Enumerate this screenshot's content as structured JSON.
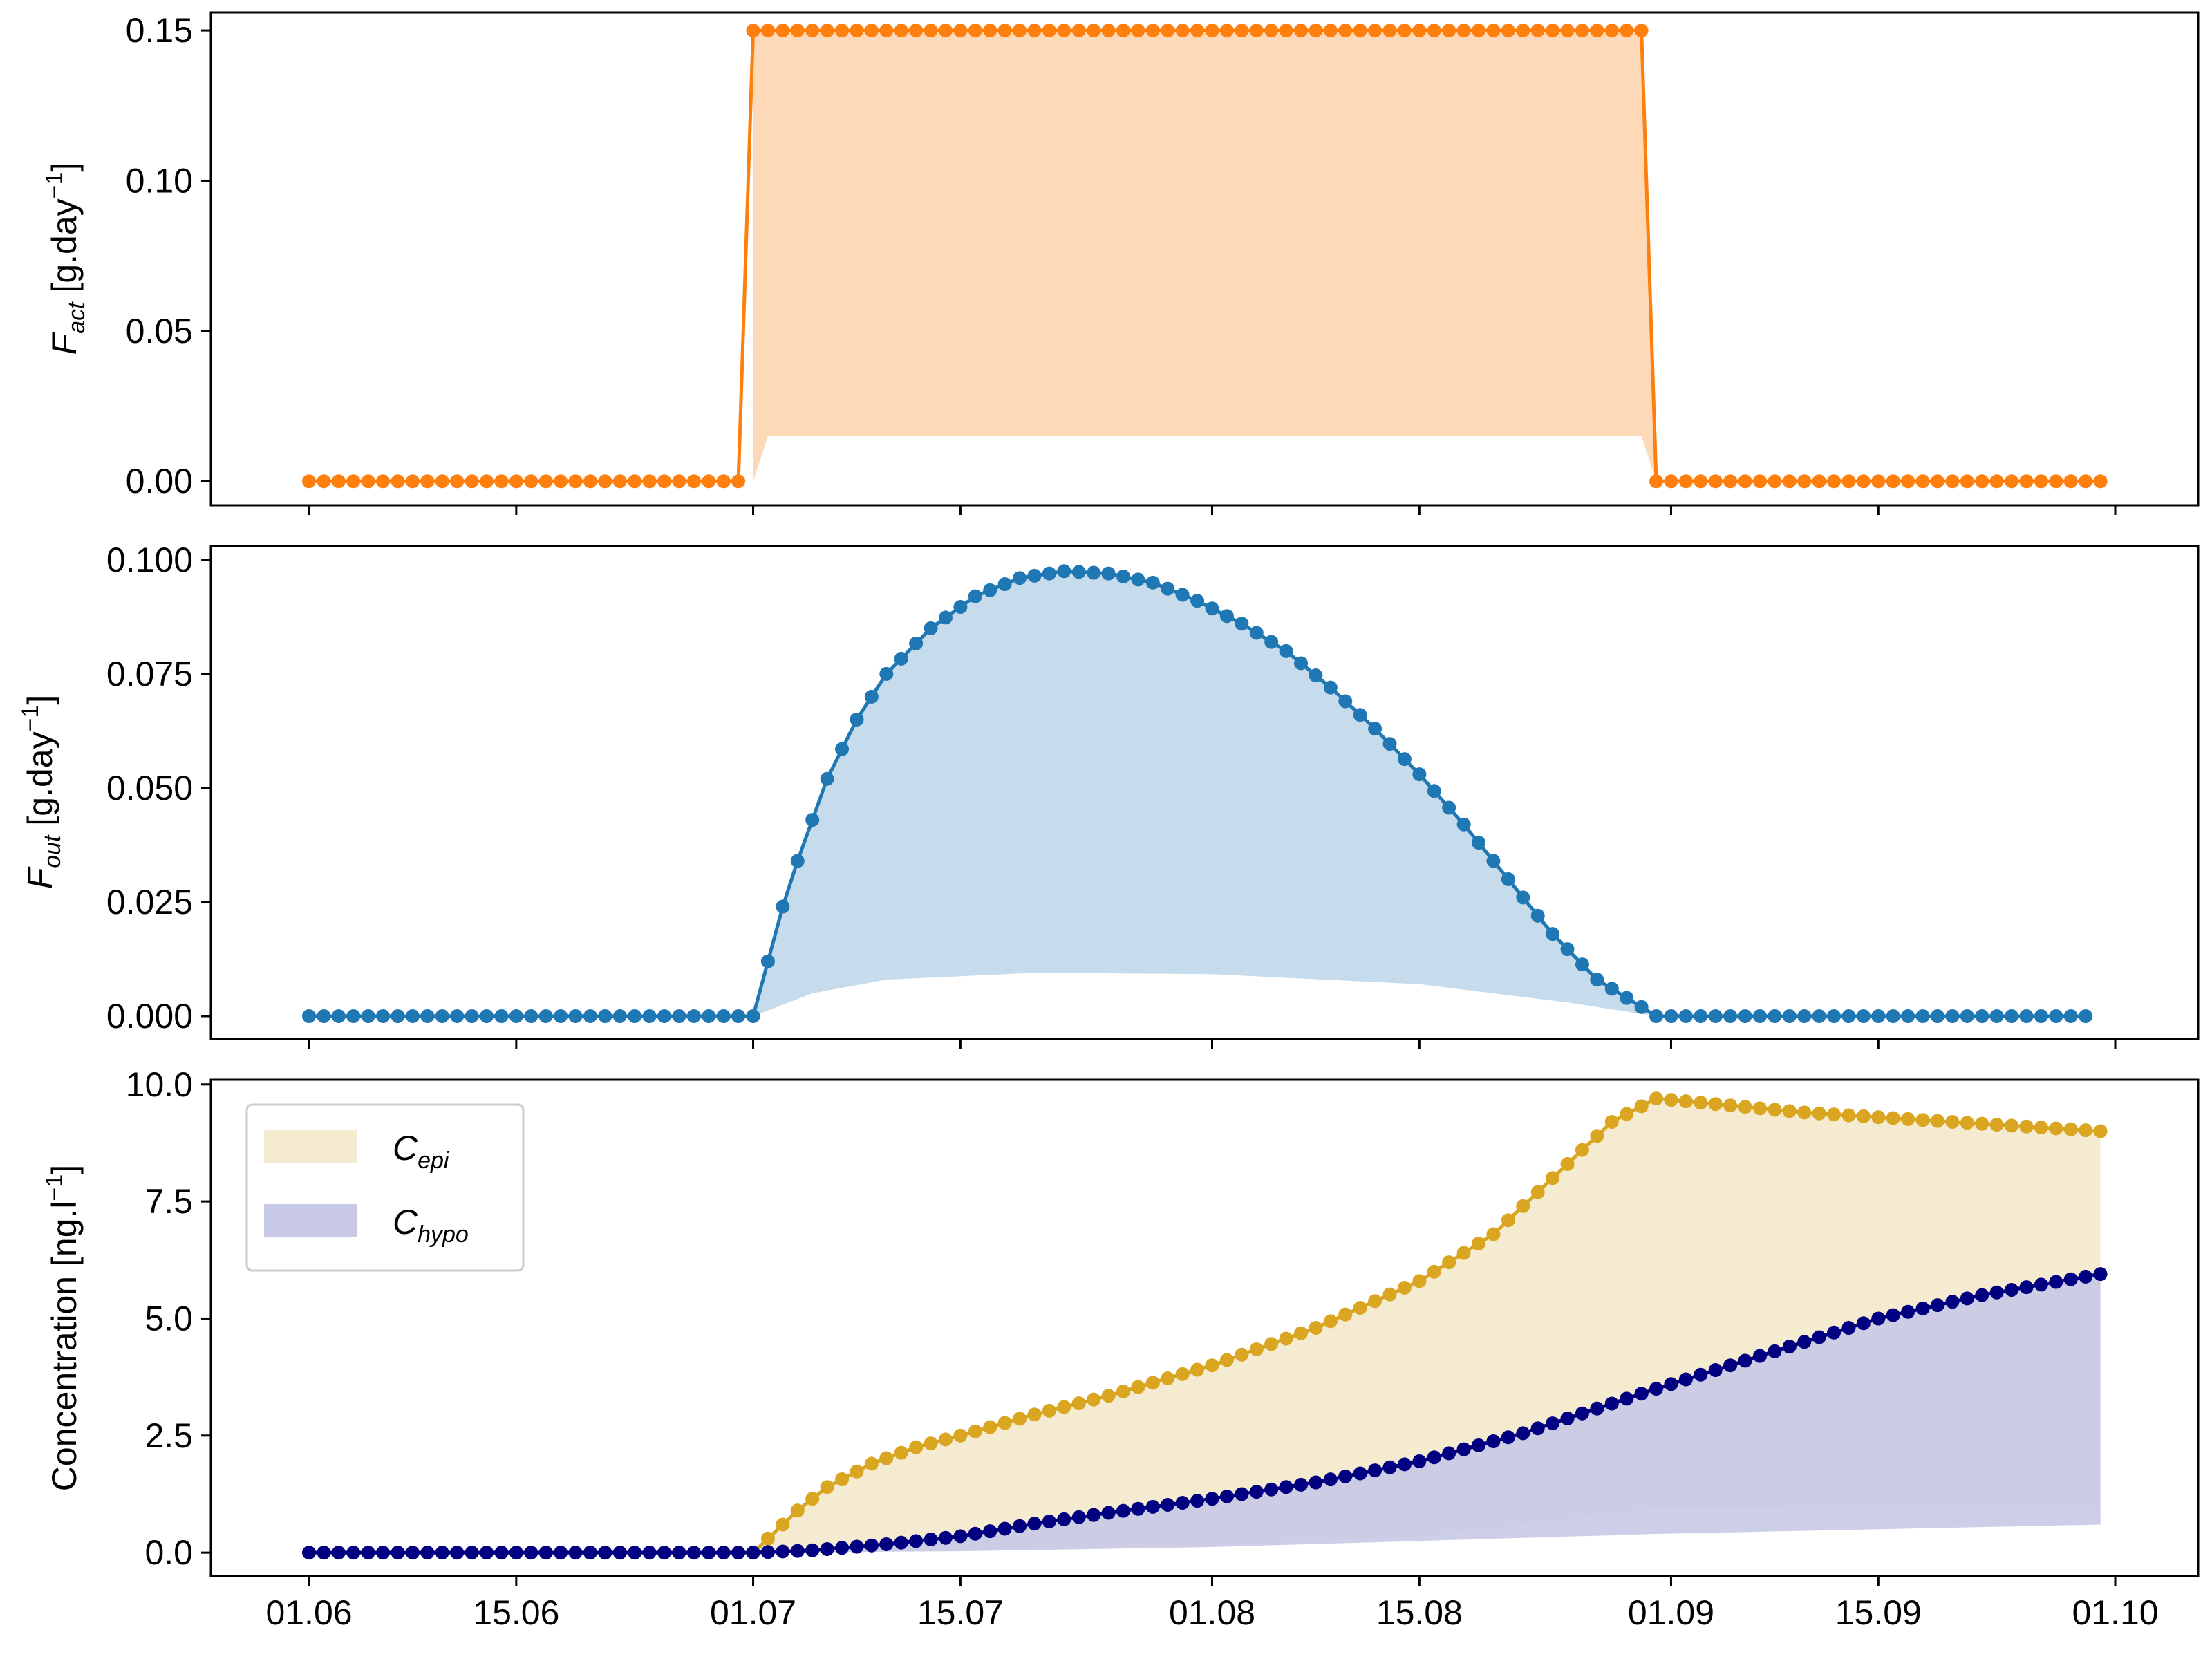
{
  "chart_data": [
    {
      "type": "line",
      "ylabel": "F_act [g.day⁻¹]",
      "ylabel_symbol": "F",
      "ylabel_sub": "act",
      "ylabel_unit": " [g.day",
      "ylabel_exp": "−1",
      "ylabel_close": "]",
      "ylim": [
        -0.008,
        0.156
      ],
      "yticks": [
        0.0,
        0.05,
        0.1,
        0.15
      ],
      "ytick_labels": [
        "0.00",
        "0.05",
        "0.10",
        "0.15"
      ],
      "x_range": [
        "01.06",
        "01.10"
      ],
      "series": [
        {
          "color": "#ff7f0e",
          "fill_color": "#fdd9b8",
          "points": [
            [
              "01.06",
              0.0
            ],
            [
              "30.06",
              0.0
            ],
            [
              "01.07",
              0.15
            ],
            [
              "30.08",
              0.15
            ],
            [
              "31.08",
              0.0
            ],
            [
              "30.09",
              0.0
            ]
          ],
          "band_lower": [
            [
              "01.07",
              0.0
            ],
            [
              "02.07",
              0.015
            ],
            [
              "30.08",
              0.015
            ],
            [
              "31.08",
              0.0
            ]
          ]
        }
      ]
    },
    {
      "type": "line",
      "ylabel": "F_out [g.day⁻¹]",
      "ylabel_symbol": "F",
      "ylabel_sub": "out",
      "ylabel_unit": " [g.day",
      "ylabel_exp": "−1",
      "ylabel_close": "]",
      "ylim": [
        -0.005,
        0.103
      ],
      "yticks": [
        0.0,
        0.025,
        0.05,
        0.075,
        0.1
      ],
      "ytick_labels": [
        "0.000",
        "0.025",
        "0.050",
        "0.075",
        "0.100"
      ],
      "x_range": [
        "01.06",
        "01.10"
      ],
      "series": [
        {
          "color": "#1f77b4",
          "fill_color": "#c6dcec",
          "points": [
            [
              "01.06",
              0.0
            ],
            [
              "30.06",
              0.0
            ],
            [
              "01.07",
              0.0
            ],
            [
              "02.07",
              0.012
            ],
            [
              "03.07",
              0.024
            ],
            [
              "04.07",
              0.034
            ],
            [
              "05.07",
              0.043
            ],
            [
              "06.07",
              0.052
            ],
            [
              "08.07",
              0.065
            ],
            [
              "10.07",
              0.075
            ],
            [
              "13.07",
              0.085
            ],
            [
              "16.07",
              0.092
            ],
            [
              "19.07",
              0.096
            ],
            [
              "22.07",
              0.0975
            ],
            [
              "25.07",
              0.097
            ],
            [
              "28.07",
              0.095
            ],
            [
              "31.07",
              0.091
            ],
            [
              "03.08",
              0.086
            ],
            [
              "06.08",
              0.08
            ],
            [
              "09.08",
              0.072
            ],
            [
              "12.08",
              0.063
            ],
            [
              "15.08",
              0.053
            ],
            [
              "18.08",
              0.042
            ],
            [
              "21.08",
              0.03
            ],
            [
              "24.08",
              0.018
            ],
            [
              "27.08",
              0.008
            ],
            [
              "30.08",
              0.002
            ],
            [
              "31.08",
              0.0
            ],
            [
              "29.09",
              0.0
            ]
          ],
          "band_lower": [
            [
              "01.07",
              0.0
            ],
            [
              "05.07",
              0.005
            ],
            [
              "10.07",
              0.008
            ],
            [
              "20.07",
              0.0095
            ],
            [
              "01.08",
              0.0092
            ],
            [
              "15.08",
              0.007
            ],
            [
              "25.08",
              0.003
            ],
            [
              "31.08",
              0.0
            ]
          ]
        }
      ]
    },
    {
      "type": "line",
      "ylabel": "Concentration [ng.l⁻¹]",
      "ylabel_main": "Concentration [ng.l",
      "ylabel_exp": "−1",
      "ylabel_close": "]",
      "ylim": [
        -0.5,
        10.1
      ],
      "yticks": [
        0.0,
        2.5,
        5.0,
        7.5,
        10.0
      ],
      "ytick_labels": [
        "0.0",
        "2.5",
        "5.0",
        "7.5",
        "10.0"
      ],
      "x_range": [
        "01.06",
        "01.10"
      ],
      "xtick_labels": [
        "01.06",
        "15.06",
        "01.07",
        "15.07",
        "01.08",
        "15.08",
        "01.09",
        "15.09",
        "01.10"
      ],
      "legend": {
        "position": "upper-left",
        "entries": [
          {
            "label": "C",
            "sub": "epi",
            "color": "#f5ebd1"
          },
          {
            "label": "C",
            "sub": "hypo",
            "color": "#c8c9e6"
          }
        ]
      },
      "series": [
        {
          "name": "C_epi",
          "color": "#daa520",
          "fill_color": "#f5ebd1",
          "start_day": "01.07",
          "points": [
            [
              "01.07",
              0.0
            ],
            [
              "02.07",
              0.3
            ],
            [
              "04.07",
              0.9
            ],
            [
              "06.07",
              1.4
            ],
            [
              "09.07",
              1.9
            ],
            [
              "12.07",
              2.25
            ],
            [
              "15.07",
              2.5
            ],
            [
              "20.07",
              2.95
            ],
            [
              "25.07",
              3.35
            ],
            [
              "01.08",
              4.0
            ],
            [
              "08.08",
              4.8
            ],
            [
              "15.08",
              5.8
            ],
            [
              "20.08",
              6.8
            ],
            [
              "24.08",
              8.0
            ],
            [
              "28.08",
              9.2
            ],
            [
              "31.08",
              9.7
            ],
            [
              "05.09",
              9.55
            ],
            [
              "10.09",
              9.4
            ],
            [
              "15.09",
              9.3
            ],
            [
              "20.09",
              9.2
            ],
            [
              "25.09",
              9.1
            ],
            [
              "30.09",
              9.0
            ]
          ],
          "band_lower": [
            [
              "01.07",
              0.0
            ],
            [
              "15.07",
              0.05
            ],
            [
              "01.08",
              0.15
            ],
            [
              "15.08",
              0.35
            ],
            [
              "31.08",
              0.95
            ],
            [
              "30.09",
              0.9
            ]
          ]
        },
        {
          "name": "C_hypo",
          "color": "#000080",
          "fill_color": "#c8c9e6",
          "points": [
            [
              "01.06",
              0.0
            ],
            [
              "01.07",
              0.0
            ],
            [
              "05.07",
              0.05
            ],
            [
              "10.07",
              0.18
            ],
            [
              "15.07",
              0.35
            ],
            [
              "20.07",
              0.62
            ],
            [
              "25.07",
              0.85
            ],
            [
              "01.08",
              1.15
            ],
            [
              "08.08",
              1.5
            ],
            [
              "15.08",
              1.95
            ],
            [
              "22.08",
              2.55
            ],
            [
              "31.08",
              3.5
            ],
            [
              "07.09",
              4.2
            ],
            [
              "15.09",
              5.0
            ],
            [
              "22.09",
              5.5
            ],
            [
              "30.09",
              5.95
            ]
          ],
          "band_lower": [
            [
              "01.07",
              0.0
            ],
            [
              "15.07",
              0.03
            ],
            [
              "01.08",
              0.12
            ],
            [
              "15.08",
              0.25
            ],
            [
              "31.08",
              0.4
            ],
            [
              "30.09",
              0.6
            ]
          ]
        }
      ]
    }
  ]
}
